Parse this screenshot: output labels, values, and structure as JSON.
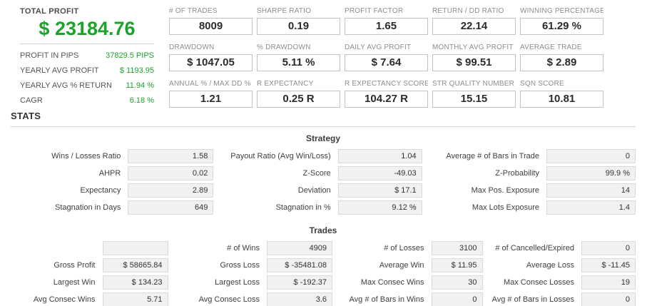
{
  "colors": {
    "green": "#1CA32C"
  },
  "left_panel": {
    "title": "TOTAL PROFIT",
    "total": "$ 23184.76",
    "rows": [
      {
        "label": "PROFIT IN PIPS",
        "value": "37829.5 PIPS"
      },
      {
        "label": "YEARLY AVG PROFIT",
        "value": "$ 1193.95"
      },
      {
        "label": "YEARLY AVG % RETURN",
        "value": "11.94 %"
      },
      {
        "label": "CAGR",
        "value": "6.18 %"
      }
    ]
  },
  "metrics": {
    "cells": [
      {
        "label": "# OF TRADES",
        "value": "8009"
      },
      {
        "label": "SHARPE RATIO",
        "value": "0.19"
      },
      {
        "label": "PROFIT FACTOR",
        "value": "1.65"
      },
      {
        "label": "RETURN / DD RATIO",
        "value": "22.14"
      },
      {
        "label": "WINNING PERCENTAGE",
        "value": "61.29 %"
      },
      {
        "label": "DRAWDOWN",
        "value": "$ 1047.05"
      },
      {
        "label": "% DRAWDOWN",
        "value": "5.11 %"
      },
      {
        "label": "DAILY AVG PROFIT",
        "value": "$ 7.64"
      },
      {
        "label": "MONTHLY AVG PROFIT",
        "value": "$ 99.51"
      },
      {
        "label": "AVERAGE TRADE",
        "value": "$ 2.89"
      },
      {
        "label": "ANNUAL % / MAX DD %",
        "value": "1.21"
      },
      {
        "label": "R EXPECTANCY",
        "value": "0.25 R"
      },
      {
        "label": "R EXPECTANCY SCORE",
        "value": "104.27 R"
      },
      {
        "label": "STR QUALITY NUMBER",
        "value": "15.15"
      },
      {
        "label": "SQN SCORE",
        "value": "10.81"
      }
    ]
  },
  "stats": {
    "title": "STATS",
    "strategy": {
      "title": "Strategy",
      "rows": [
        [
          {
            "label": "Wins / Losses Ratio",
            "value": "1.58"
          },
          {
            "label": "Payout Ratio (Avg Win/Loss)",
            "value": "1.04"
          },
          {
            "label": "Average # of Bars in Trade",
            "value": "0"
          }
        ],
        [
          {
            "label": "AHPR",
            "value": "0.02"
          },
          {
            "label": "Z-Score",
            "value": "-49.03"
          },
          {
            "label": "Z-Probability",
            "value": "99.9 %"
          }
        ],
        [
          {
            "label": "Expectancy",
            "value": "2.89"
          },
          {
            "label": "Deviation",
            "value": "$ 17.1"
          },
          {
            "label": "Max Pos. Exposure",
            "value": "14"
          }
        ],
        [
          {
            "label": "Stagnation in Days",
            "value": "649"
          },
          {
            "label": "Stagnation in %",
            "value": "9.12 %"
          },
          {
            "label": "Max Lots Exposure",
            "value": "1.4"
          }
        ]
      ]
    },
    "trades": {
      "title": "Trades",
      "rows": [
        [
          {
            "label": "",
            "value": ""
          },
          {
            "label": "# of Wins",
            "value": "4909"
          },
          {
            "label": "# of Losses",
            "value": "3100"
          },
          {
            "label": "# of Cancelled/Expired",
            "value": "0"
          }
        ],
        [
          {
            "label": "Gross Profit",
            "value": "$ 58665.84"
          },
          {
            "label": "Gross Loss",
            "value": "$ -35481.08"
          },
          {
            "label": "Average Win",
            "value": "$ 11.95"
          },
          {
            "label": "Average Loss",
            "value": "$ -11.45"
          }
        ],
        [
          {
            "label": "Largest Win",
            "value": "$ 134.23"
          },
          {
            "label": "Largest Loss",
            "value": "$ -192.37"
          },
          {
            "label": "Max Consec Wins",
            "value": "30"
          },
          {
            "label": "Max Consec Losses",
            "value": "19"
          }
        ],
        [
          {
            "label": "Avg Consec Wins",
            "value": "5.71"
          },
          {
            "label": "Avg Consec Loss",
            "value": "3.6"
          },
          {
            "label": "Avg # of Bars in Wins",
            "value": "0"
          },
          {
            "label": "Avg # of Bars in Losses",
            "value": "0"
          }
        ]
      ]
    }
  }
}
